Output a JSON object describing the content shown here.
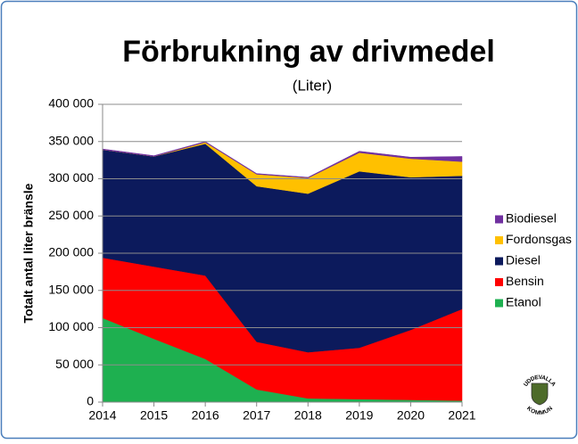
{
  "chart_data": {
    "type": "stacked_area",
    "title": "Förbrukning av drivmedel",
    "subtitle": "(Liter)",
    "ylabel": "Totalt antal liter bränsle",
    "x": [
      2014,
      2015,
      2016,
      2017,
      2018,
      2019,
      2020,
      2021
    ],
    "xlim": [
      2014,
      2021
    ],
    "xticks": [
      2014,
      2015,
      2016,
      2017,
      2018,
      2019,
      2020,
      2021
    ],
    "ylim": [
      0,
      400000
    ],
    "yticks": [
      0,
      {
        "value": 50000,
        "label": "50 000"
      },
      {
        "value": 100000,
        "label": "100 000"
      },
      {
        "value": 150000,
        "label": "150 000"
      },
      {
        "value": 200000,
        "label": "200 000"
      },
      {
        "value": 250000,
        "label": "250 000"
      },
      {
        "value": 300000,
        "label": "300 000"
      },
      {
        "value": 350000,
        "label": "350 000"
      },
      {
        "value": 400000,
        "label": "400 000"
      }
    ],
    "grid": true,
    "legend": "right",
    "series": [
      {
        "name": "Etanol",
        "color": "#1eb050",
        "values": [
          113000,
          85000,
          58000,
          17000,
          5000,
          4000,
          3000,
          2000
        ]
      },
      {
        "name": "Bensin",
        "color": "#ff0000",
        "values": [
          81000,
          97000,
          112000,
          64000,
          62000,
          69000,
          94000,
          123000
        ]
      },
      {
        "name": "Diesel",
        "color": "#0c1a5c",
        "values": [
          145000,
          148000,
          177000,
          209000,
          213000,
          237000,
          205000,
          179000
        ]
      },
      {
        "name": "Fordonsgas",
        "color": "#ffc000",
        "values": [
          0,
          0,
          2000,
          16000,
          21000,
          25000,
          25000,
          19000
        ]
      },
      {
        "name": "Biodiesel",
        "color": "#7030a0",
        "values": [
          1000,
          1000,
          1000,
          1000,
          1000,
          2000,
          2000,
          7000
        ]
      }
    ]
  },
  "logo": {
    "top": "UDDEVALLA",
    "bottom": "KOMMUN"
  }
}
